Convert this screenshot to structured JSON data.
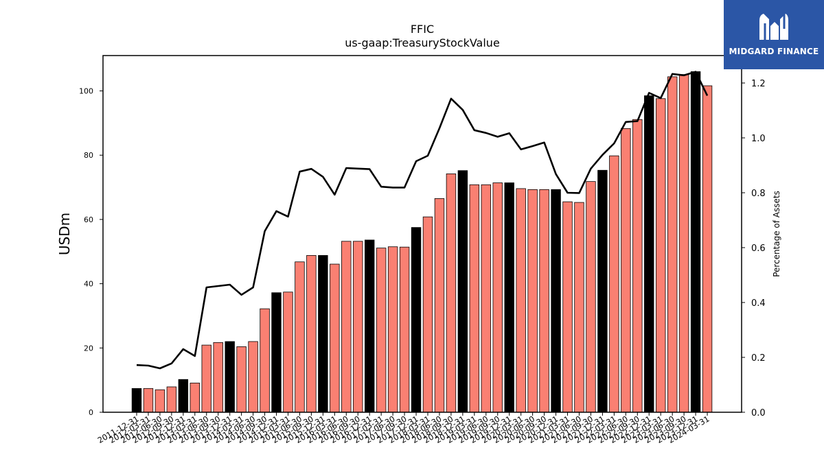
{
  "chart_data": {
    "type": "bar",
    "title": "FFIC",
    "subtitle": "us-gaap:TreasuryStockValue",
    "ylabel": "USDm",
    "y2label": "Percentage of Assets",
    "ylim": [
      0,
      111
    ],
    "y2lim": [
      0,
      1.3
    ],
    "yticks": [
      0,
      20,
      40,
      60,
      80,
      100
    ],
    "y2ticks": [
      0.0,
      0.2,
      0.4,
      0.6,
      0.8,
      1.0,
      1.2
    ],
    "colors": {
      "bar": "#fa8072",
      "bar_year_end": "#000000",
      "line": "#000000"
    },
    "categories": [
      "2011-12-31",
      "2012-03-31",
      "2012-06-30",
      "2012-09-30",
      "2012-12-31",
      "2013-03-31",
      "2013-06-30",
      "2013-09-30",
      "2013-12-31",
      "2014-03-31",
      "2014-06-30",
      "2014-09-30",
      "2014-12-31",
      "2015-03-31",
      "2015-06-30",
      "2015-09-30",
      "2015-12-31",
      "2016-03-31",
      "2016-06-30",
      "2016-09-30",
      "2016-12-31",
      "2017-03-31",
      "2017-06-30",
      "2017-09-30",
      "2017-12-31",
      "2018-03-31",
      "2018-06-30",
      "2018-09-30",
      "2018-12-31",
      "2019-03-31",
      "2019-06-30",
      "2019-09-30",
      "2019-12-31",
      "2020-03-31",
      "2020-06-30",
      "2020-09-30",
      "2020-12-31",
      "2021-03-31",
      "2021-06-30",
      "2021-09-30",
      "2021-12-31",
      "2022-03-31",
      "2022-06-30",
      "2022-09-30",
      "2022-12-31",
      "2023-03-31",
      "2023-06-30",
      "2023-09-30",
      "2023-12-31",
      "2024-03-31"
    ],
    "series": [
      {
        "type": "bar",
        "values": [
          7.4,
          7.4,
          7.0,
          7.9,
          10.2,
          9.1,
          20.9,
          21.7,
          22.0,
          20.4,
          22.0,
          32.2,
          37.2,
          37.4,
          46.8,
          48.8,
          48.8,
          46.1,
          53.2,
          53.2,
          53.6,
          51.1,
          51.5,
          51.4,
          57.5,
          60.8,
          66.5,
          74.2,
          75.2,
          70.8,
          70.8,
          71.4,
          71.4,
          69.6,
          69.3,
          69.3,
          69.3,
          65.5,
          65.3,
          71.8,
          75.3,
          79.8,
          88.3,
          91.1,
          98.5,
          97.6,
          104.4,
          105.1,
          106.0,
          101.6
        ]
      },
      {
        "type": "line",
        "axis": "right",
        "values": [
          0.172,
          0.17,
          0.16,
          0.178,
          0.23,
          0.205,
          0.455,
          0.46,
          0.465,
          0.428,
          0.455,
          0.66,
          0.733,
          0.713,
          0.877,
          0.887,
          0.858,
          0.793,
          0.89,
          0.888,
          0.886,
          0.822,
          0.819,
          0.819,
          0.915,
          0.935,
          1.035,
          1.143,
          1.102,
          1.028,
          1.018,
          1.004,
          1.017,
          0.958,
          0.97,
          0.983,
          0.868,
          0.8,
          0.799,
          0.888,
          0.938,
          0.98,
          1.058,
          1.061,
          1.164,
          1.145,
          1.233,
          1.228,
          1.241,
          1.154
        ]
      }
    ]
  },
  "logo": {
    "brand": "MIDGARD FINANCE"
  }
}
